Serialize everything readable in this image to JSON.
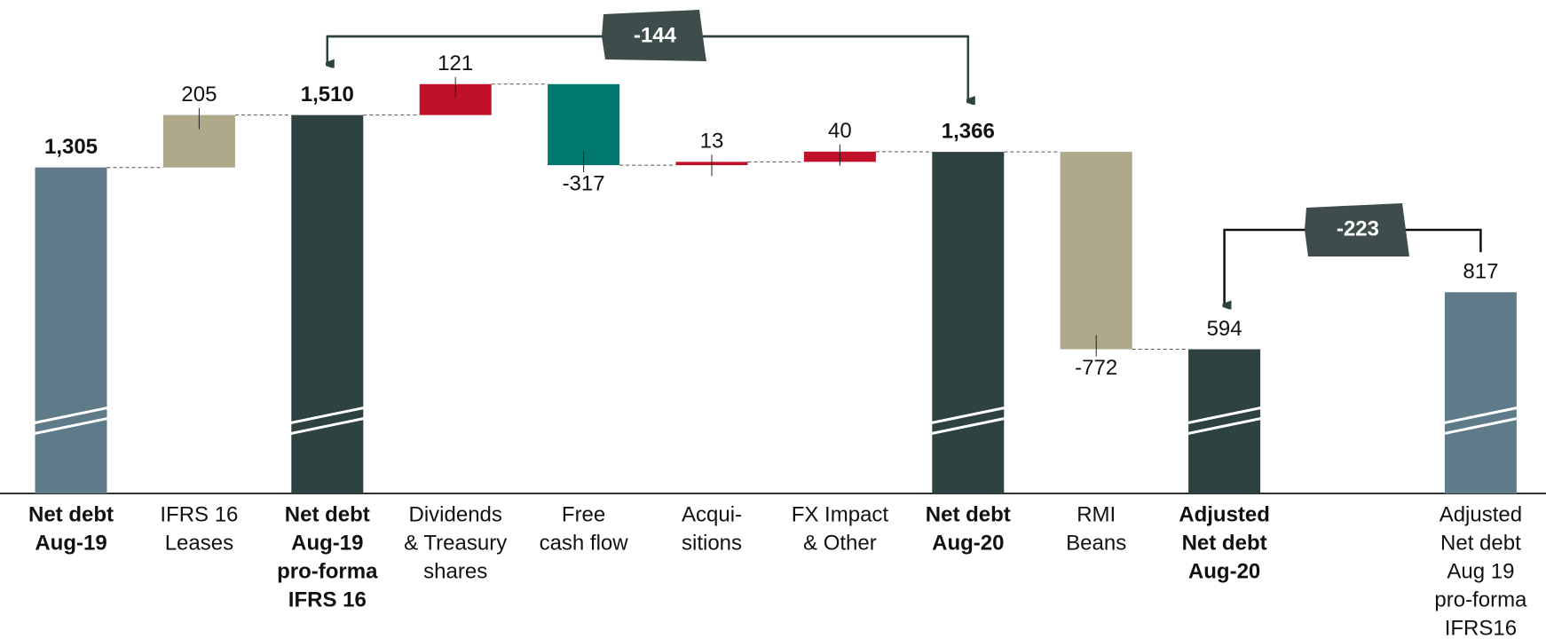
{
  "chart_data": {
    "type": "waterfall",
    "categories": [
      [
        "Net debt",
        "Aug-19"
      ],
      [
        "IFRS 16",
        "Leases"
      ],
      [
        "Net debt",
        "Aug-19",
        "pro-forma",
        "IFRS 16"
      ],
      [
        "Dividends",
        "& Treasury",
        "shares"
      ],
      [
        "Free",
        "cash flow"
      ],
      [
        "Acqui-",
        "sitions"
      ],
      [
        "FX Impact",
        "& Other"
      ],
      [
        "Net debt",
        "Aug-20"
      ],
      [
        "RMI",
        "Beans"
      ],
      [
        "Adjusted",
        "Net debt",
        "Aug-20"
      ],
      null,
      [
        "Adjusted",
        "Net debt",
        "Aug 19",
        "pro-forma",
        "IFRS16"
      ]
    ],
    "values": [
      1305,
      205,
      1510,
      121,
      -317,
      13,
      40,
      1366,
      -772,
      594,
      null,
      817
    ],
    "value_labels": [
      "1,305",
      "205",
      "1,510",
      "121",
      "-317",
      "13",
      "40",
      "1,366",
      "-772",
      "594",
      null,
      "817"
    ],
    "totals": [
      true,
      false,
      true,
      false,
      false,
      false,
      false,
      true,
      false,
      true,
      null,
      true
    ],
    "colors": [
      "#5f7b8a",
      "#aea98a",
      "#2d4241",
      "#c0102a",
      "#007870",
      "#c0102a",
      "#c0102a",
      "#2d4241",
      "#aea98a",
      "#2d4241",
      null,
      "#5f7b8a"
    ],
    "annotations": [
      -144,
      -223
    ],
    "ylim": [
      30,
      1960
    ]
  }
}
